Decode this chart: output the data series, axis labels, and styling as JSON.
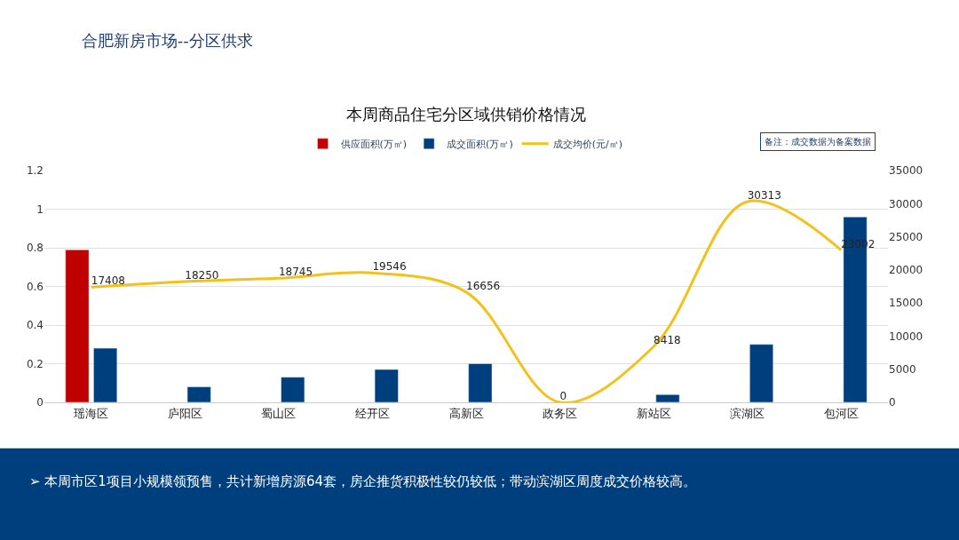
{
  "chart_data": {
    "type": "bar",
    "title": "合肥新房市场--分区供求",
    "subtitle": "本周商品住宅分区域供销价格情况",
    "categories": [
      "瑶海区",
      "庐阳区",
      "蜀山区",
      "经开区",
      "高新区",
      "政务区",
      "新站区",
      "滨湖区",
      "包河区"
    ],
    "series": [
      {
        "name": "供应面积(万㎡)",
        "color": "#c00000",
        "values": [
          0.79,
          null,
          null,
          null,
          null,
          null,
          null,
          null,
          null
        ]
      },
      {
        "name": "成交面积(万㎡)",
        "color": "#003f7d",
        "values": [
          0.28,
          0.08,
          0.13,
          0.17,
          0.2,
          null,
          0.04,
          0.3,
          0.96
        ]
      },
      {
        "name": "成交均价(元/㎡)",
        "type": "line",
        "axis": "y2",
        "color": "#f2c21b",
        "values": [
          17408,
          18250,
          18745,
          19546,
          16656,
          0,
          8418,
          30313,
          23002
        ],
        "value_labels": [
          "17408",
          "18250",
          "18745",
          "19546",
          "16656",
          "0",
          "8418",
          "30313",
          "23002"
        ]
      }
    ],
    "ylim": [
      0,
      1.2
    ],
    "yticks": [
      0,
      0.2,
      0.4,
      0.6,
      0.8,
      1,
      1.2
    ],
    "y2lim": [
      0,
      35000
    ],
    "y2ticks": [
      0,
      5000,
      10000,
      15000,
      20000,
      25000,
      30000,
      35000
    ],
    "grid": "y",
    "legend": "top",
    "marker": "none",
    "annotations": [
      "备注：成交数据为备案数据",
      "➢ 本周市区1项目小规模领预售，共计新增房源64套，房企推货积极性较仍较低；带动滨湖区周度成交价格较高。"
    ]
  }
}
